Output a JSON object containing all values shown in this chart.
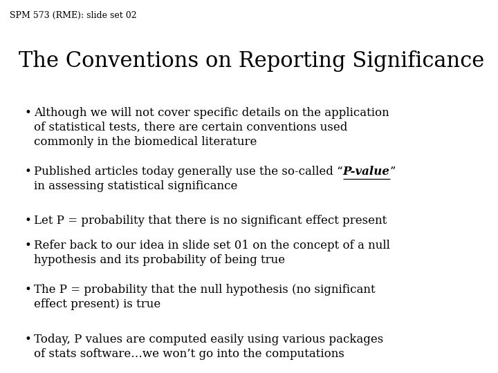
{
  "background_color": "#ffffff",
  "slide_label": "SPM 573 (RME): slide set 02",
  "title": "The Conventions on Reporting Significance",
  "bullets": [
    {
      "text": "Although we will not cover specific details on the application\nof statistical tests, there are certain conventions used\ncommonly in the biomedical literature",
      "special": false
    },
    {
      "text_before": "Published articles today generally use the so-called “",
      "text_special": "P-value",
      "text_after": "”\nin assessing statistical significance",
      "special": true
    },
    {
      "text": "Let P = probability that there is no significant effect present",
      "special": false
    },
    {
      "text": "Refer back to our idea in slide set 01 on the concept of a null\nhypothesis and its probability of being true",
      "special": false
    },
    {
      "text": "The P = probability that the null hypothesis (no significant\neffect present) is true",
      "special": false
    },
    {
      "text": "Today, P values are computed easily using various packages\nof stats software…we won’t go into the computations",
      "special": false
    }
  ],
  "slide_label_fontsize": 9,
  "title_fontsize": 22,
  "bullet_fontsize": 12,
  "text_color": "#000000",
  "font_family": "DejaVu Serif"
}
